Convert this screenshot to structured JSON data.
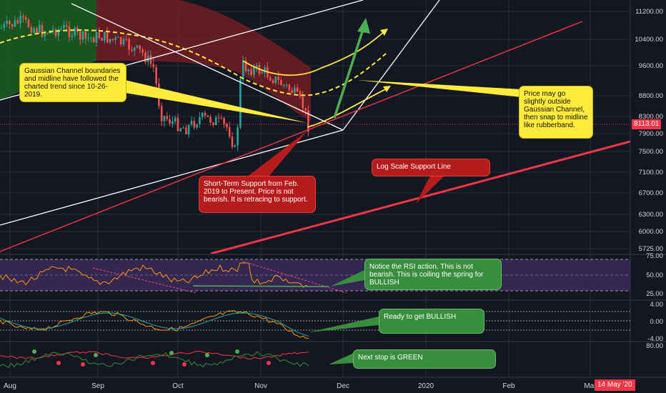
{
  "chart_data": {
    "type": "candlestick",
    "title": "",
    "price_axis": {
      "scale": "log",
      "tick_labels": [
        "11200.00",
        "10400.00",
        "9600.00",
        "8800.00",
        "8300.00",
        "7900.00",
        "7500.00",
        "7100.00",
        "6700.00",
        "6300.00",
        "6000.00",
        "5725.00"
      ],
      "last_price_label": "8113.01",
      "last_price": 8113.01
    },
    "time_axis": {
      "tick_labels": [
        "Aug",
        "Sep",
        "Oct",
        "Nov",
        "Dec",
        "2020",
        "Feb",
        "Mar"
      ],
      "cursor_label": "14 May '20"
    },
    "rsi_panel": {
      "tick_labels": [
        "75.00",
        "50.00",
        "25.00"
      ],
      "levels": [
        70,
        50,
        30
      ]
    },
    "macd_panel": {
      "tick_labels": [
        "4.00",
        "0.00",
        "-4.00"
      ]
    },
    "third_panel": {
      "tick_labels": [
        "80.00"
      ]
    },
    "annotations": [
      {
        "id": "gaussian-note",
        "color": "yellow",
        "text": "Gaussian Channel boundaries and midline have followed the charted trend since 10-26-2019."
      },
      {
        "id": "rubberband-note",
        "color": "yellow",
        "text": "Price may go slightly outside Gaussian Channel, then snap to midline like rubberband."
      },
      {
        "id": "short-term-note",
        "color": "red",
        "text": "Short-Term Support from Feb. 2019 to Present.  Price is not bearish.  It is retracing to support."
      },
      {
        "id": "log-support-note",
        "color": "red",
        "text": "Log Scale Support Line"
      },
      {
        "id": "rsi-note",
        "color": "green",
        "text": "Notice the RSI action.  This is not bearish.  This is coiling the spring for BULLISH"
      },
      {
        "id": "bullish-note",
        "color": "green",
        "text": "Ready to get BULLISH"
      },
      {
        "id": "green-note",
        "color": "green",
        "text": "Next stop is GREEN"
      }
    ],
    "colors": {
      "background": "#131722",
      "up_candle": "#26a69a",
      "down_candle": "#ef5350",
      "channel_fill": "#8b1c26",
      "midline": "#ffeb3b",
      "support_line": "#f23645",
      "trend_lines": "#ffffff",
      "arrow_green": "#4caf50",
      "rsi_band": "#3b2a5a"
    }
  }
}
